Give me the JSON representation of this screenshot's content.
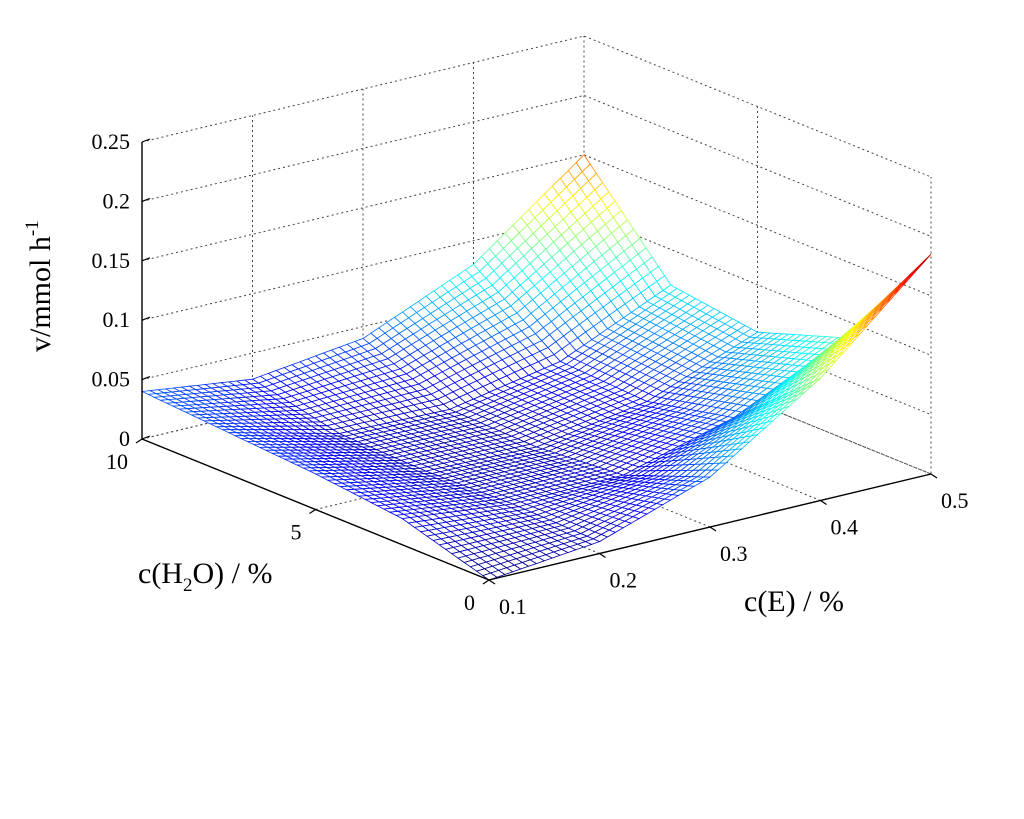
{
  "chart_data": {
    "type": "surface",
    "title": "",
    "xlabel": {
      "pre": "c(E) / %",
      "sub": "",
      "post": ""
    },
    "ylabel": {
      "pre": "c(H",
      "sub": "2",
      "post": "O) / %"
    },
    "zlabel": {
      "pre": "v/mmol h",
      "sup": "-1"
    },
    "xlim": [
      0.1,
      0.5
    ],
    "ylim": [
      0,
      10
    ],
    "zlim": [
      0,
      0.25
    ],
    "x_ticks": [
      "0.1",
      "0.2",
      "0.3",
      "0.4",
      "0.5"
    ],
    "y_ticks": [
      "0",
      "5",
      "10"
    ],
    "z_ticks": [
      "0",
      "0.05",
      "0.1",
      "0.15",
      "0.2",
      "0.25"
    ],
    "grid": true,
    "colormap": "jet",
    "surface_samples": {
      "x": [
        0.1,
        0.2,
        0.3,
        0.4,
        0.5
      ],
      "y": [
        0,
        2.5,
        5,
        7.5,
        10
      ],
      "z": [
        [
          0.0,
          0.01,
          0.042,
          0.103,
          0.185
        ],
        [
          0.022,
          0.012,
          0.014,
          0.04,
          0.085
        ],
        [
          0.03,
          0.01,
          0.008,
          0.024,
          0.06
        ],
        [
          0.035,
          0.012,
          0.01,
          0.028,
          0.07
        ],
        [
          0.04,
          0.028,
          0.04,
          0.08,
          0.15
        ]
      ]
    }
  }
}
